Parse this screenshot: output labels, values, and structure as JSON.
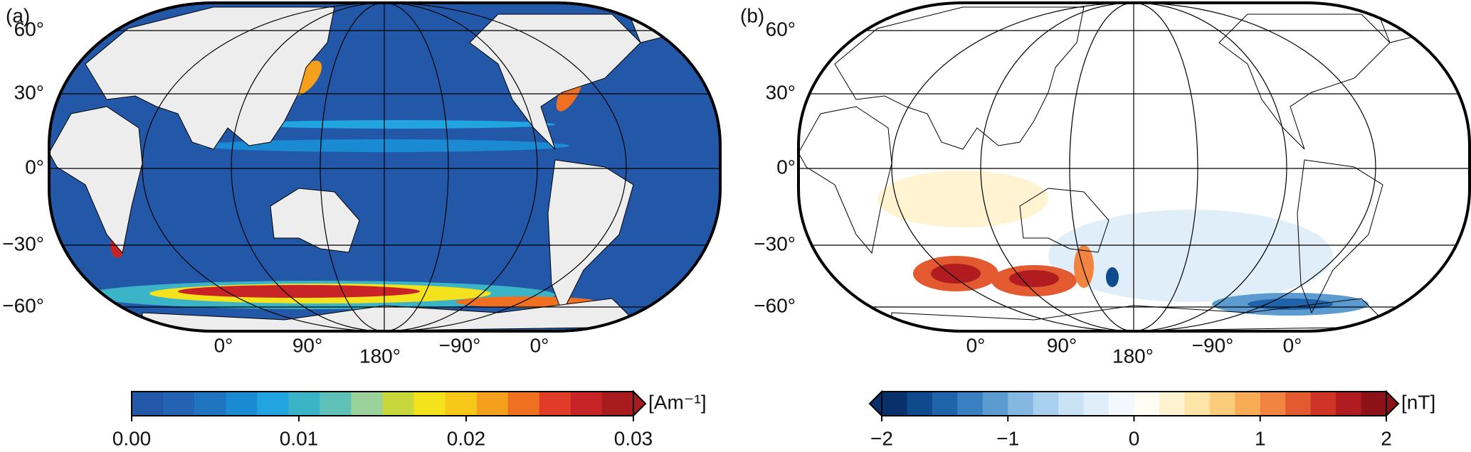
{
  "panels": [
    {
      "label": "(a)",
      "lat_labels": [
        "60°",
        "30°",
        "0°",
        "−30°",
        "−60°"
      ],
      "lon_labels": [
        "0°",
        "90°",
        "180°",
        "−90°",
        "0°"
      ],
      "colorbar": {
        "unit": "[Am⁻¹]",
        "clim": [
          0,
          0.03
        ],
        "extend": "max",
        "ticks": [
          {
            "value": 0,
            "label": "0.00"
          },
          {
            "value": 0.01,
            "label": "0.01"
          },
          {
            "value": 0.02,
            "label": "0.02"
          },
          {
            "value": 0.03,
            "label": "0.03"
          }
        ],
        "colors": [
          "#2358a8",
          "#2463b4",
          "#1f74c0",
          "#1a8ad2",
          "#21a4e0",
          "#3bb4c8",
          "#5fc0b8",
          "#9bd29c",
          "#c8d83c",
          "#f4e21c",
          "#f8c818",
          "#f5a01c",
          "#ef7020",
          "#e03c28",
          "#c82428",
          "#a81c20"
        ]
      }
    },
    {
      "label": "(b)",
      "lat_labels": [
        "60°",
        "30°",
        "0°",
        "−30°",
        "−60°"
      ],
      "lon_labels": [
        "0°",
        "90°",
        "180°",
        "−90°",
        "0°"
      ],
      "colorbar": {
        "unit": "[nT]",
        "clim": [
          -2,
          2
        ],
        "extend": "both",
        "ticks": [
          {
            "value": -2,
            "label": "−2"
          },
          {
            "value": -1,
            "label": "−1"
          },
          0,
          1,
          2
        ],
        "colors": [
          "#08306b",
          "#0e4a8c",
          "#1f64ab",
          "#3a7fc0",
          "#5b9bd0",
          "#84b8e0",
          "#a9d0ee",
          "#c9e2f5",
          "#e0eef9",
          "#f2f8fd",
          "#fffdf4",
          "#fff3d2",
          "#fde6a8",
          "#fbcd7a",
          "#f8ac56",
          "#f18440",
          "#e45a30",
          "#cf3426",
          "#b01c20",
          "#8c1218"
        ]
      }
    }
  ]
}
